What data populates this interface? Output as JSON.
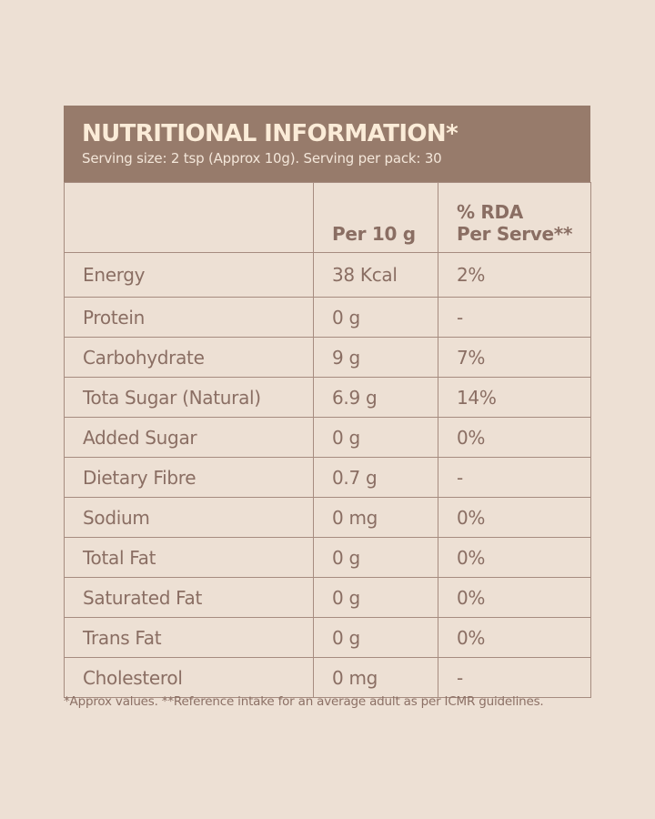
{
  "header": {
    "title": "NUTRITIONAL INFORMATION*",
    "subtitle": "Serving size: 2 tsp (Approx 10g). Serving per pack: 30"
  },
  "table": {
    "columns": [
      "",
      "Per 10 g",
      "% RDA",
      "Per Serve**"
    ],
    "rows": [
      {
        "nutrient": "Energy",
        "per_10g": "38 Kcal",
        "rda": "2%"
      },
      {
        "nutrient": "Protein",
        "per_10g": "0 g",
        "rda": "-"
      },
      {
        "nutrient": "Carbohydrate",
        "per_10g": "9 g",
        "rda": "7%"
      },
      {
        "nutrient": "Tota Sugar (Natural)",
        "per_10g": "6.9 g",
        "rda": "14%"
      },
      {
        "nutrient": "Added Sugar",
        "per_10g": "0 g",
        "rda": "0%"
      },
      {
        "nutrient": "Dietary Fibre",
        "per_10g": "0.7 g",
        "rda": "-"
      },
      {
        "nutrient": "Sodium",
        "per_10g": "0 mg",
        "rda": "0%"
      },
      {
        "nutrient": "Total Fat",
        "per_10g": "0 g",
        "rda": "0%"
      },
      {
        "nutrient": "Saturated Fat",
        "per_10g": "0 g",
        "rda": "0%"
      },
      {
        "nutrient": "Trans Fat",
        "per_10g": "0 g",
        "rda": "0%"
      },
      {
        "nutrient": "Cholesterol",
        "per_10g": "0 mg",
        "rda": "-"
      }
    ]
  },
  "footnote": "*Approx values. **Reference intake for an average adult as per ICMR guidelines.",
  "colors": {
    "background": "#ede0d4",
    "header_band": "#977b6b",
    "header_text": "#fbecd8",
    "body_text": "#8a6e63",
    "border": "#a68c80"
  }
}
